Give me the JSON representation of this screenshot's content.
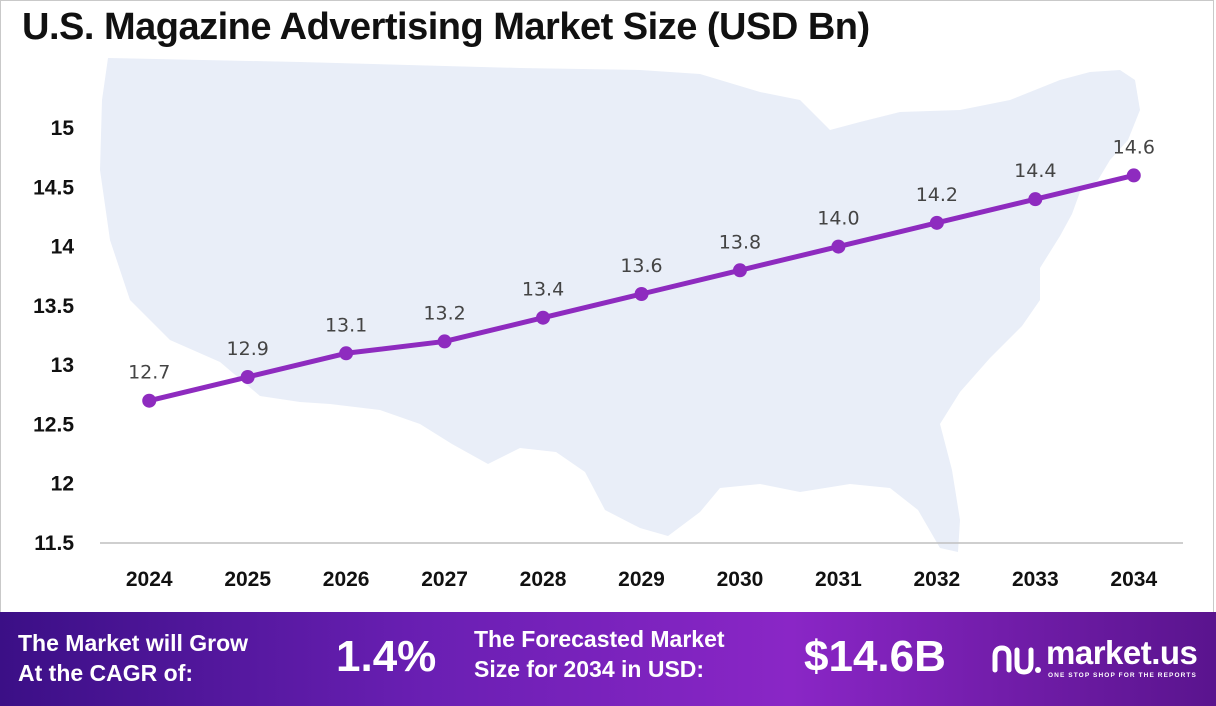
{
  "title": "U.S. Magazine Advertising Market Size (USD Bn)",
  "chart_data": {
    "type": "line",
    "title": "U.S. Magazine Advertising Market Size (USD Bn)",
    "categories": [
      "2024",
      "2025",
      "2026",
      "2027",
      "2028",
      "2029",
      "2030",
      "2031",
      "2032",
      "2033",
      "2034"
    ],
    "values": [
      12.7,
      12.9,
      13.1,
      13.2,
      13.4,
      13.6,
      13.8,
      14.0,
      14.2,
      14.4,
      14.6
    ],
    "data_labels": [
      "12.7",
      "12.9",
      "13.1",
      "13.2",
      "13.4",
      "13.6",
      "13.8",
      "14.0",
      "14.2",
      "14.4",
      "14.6"
    ],
    "yticks": [
      "11.5",
      "12",
      "12.5",
      "13",
      "13.5",
      "14",
      "14.5",
      "15"
    ],
    "ylim": [
      11.5,
      15
    ],
    "xlabel": "",
    "ylabel": "",
    "grid": false,
    "legend": "none",
    "line_color": "#8e2bbf",
    "background_map": "United States map silhouette"
  },
  "footer": {
    "cagr_label_line1": "The Market will Grow",
    "cagr_label_line2": "At the CAGR of:",
    "cagr_value": "1.4%",
    "forecast_label_line1": "The Forecasted Market",
    "forecast_label_line2": "Size for 2034 in USD:",
    "forecast_value": "$14.6B",
    "brand_name": "market.us",
    "brand_tagline": "ONE STOP SHOP FOR THE REPORTS",
    "brand_icon": "market-us-logo-icon"
  },
  "colors": {
    "line": "#8e2bbf",
    "map": "#e8edf8",
    "footer_start": "#3b0f86",
    "footer_end": "#8a26c6"
  }
}
